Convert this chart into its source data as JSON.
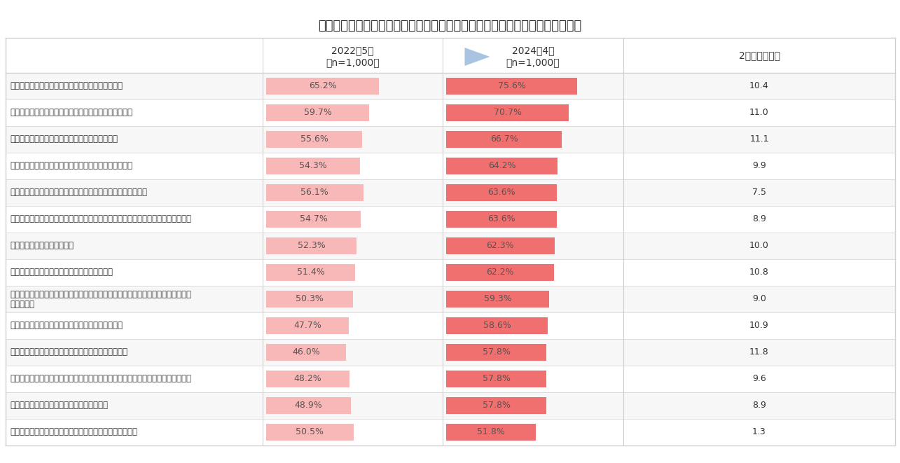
{
  "title": "食品スーパーで実施されているサステナブルな取り組みのうち関心のあるもの",
  "col1_header_line1": "2022年5月",
  "col1_header_line2": "（n=1,000）",
  "col2_header_line1": "2024年4月",
  "col2_header_line2": "（n=1,000）",
  "col3_header": "2年前との増減",
  "rows": [
    {
      "label": "消費期限・賞味期限が間近な商品を割引価格で販売",
      "v2022": 65.2,
      "v2024": 75.6,
      "diff": "10.4"
    },
    {
      "label": "賞味期限が近付いた野菜・果物をまとめて陳列して販売",
      "v2022": 59.7,
      "v2024": 70.7,
      "diff": "11.0"
    },
    {
      "label": "肉や魚のトレー販売削減（袋や、紙包装で販売）",
      "v2022": 55.6,
      "v2024": 66.7,
      "diff": "11.1"
    },
    {
      "label": "きらびやかな照明など過剰な演出を控えたエコな売り場",
      "v2022": 54.3,
      "v2024": 64.2,
      "diff": "9.9"
    },
    {
      "label": "バラ売り・量り売りでお客様が必要な分だけ買えるように販売",
      "v2022": 56.1,
      "v2024": 63.6,
      "diff": "7.5"
    },
    {
      "label": "キャベツやとうもろこしなどの外葉を回収し、動物用の飼料などの原料として回収",
      "v2022": 54.7,
      "v2024": 63.6,
      "diff": "8.9"
    },
    {
      "label": "お刺身は「つま無し」で販売",
      "v2022": 52.3,
      "v2024": 62.3,
      "diff": "10.0"
    },
    {
      "label": "キャベツなど外葉をとって簡易包装されて販売",
      "v2022": 51.4,
      "v2024": 62.2,
      "diff": "10.8"
    },
    {
      "label": "捨ててしまいがちな食材の一部（野菜の端材、魚の骨など）を美味しく食べ切れるレシピ紹介",
      "v2022": 50.3,
      "v2024": 59.3,
      "diff": "9.0",
      "two_line": true
    },
    {
      "label": "購入金額の一部を環境改善のための取り組みへ寄付",
      "v2022": 47.7,
      "v2024": 58.6,
      "diff": "10.9"
    },
    {
      "label": "魚をおろし、刺身や切り身にした後の「あら」の販売",
      "v2022": 46.0,
      "v2024": 57.8,
      "diff": "11.8"
    },
    {
      "label": "節分の恵方巻等、これまで当日販売中心だった催事商品を原則予約販売に切り替え",
      "v2022": 48.2,
      "v2024": 57.8,
      "diff": "9.6"
    },
    {
      "label": "保冷剤をお店で回収・洗浄消毒をして再利用",
      "v2022": 48.9,
      "v2024": 57.8,
      "diff": "8.9"
    },
    {
      "label": "食べる人数に合わせて適切な量を教えてくれるレシピ紹介",
      "v2022": 50.5,
      "v2024": 51.8,
      "diff": "1.3"
    }
  ],
  "bar_color_2022": "#f9b8b8",
  "bar_color_2024": "#f07070",
  "row_bg_odd": "#f7f7f7",
  "row_bg_even": "#ffffff",
  "grid_color": "#d0d0d0",
  "arrow_color": "#a8c4e0",
  "title_fontsize": 13,
  "header_fontsize": 10,
  "label_fontsize": 8.5,
  "value_fontsize": 9,
  "diff_fontsize": 9
}
